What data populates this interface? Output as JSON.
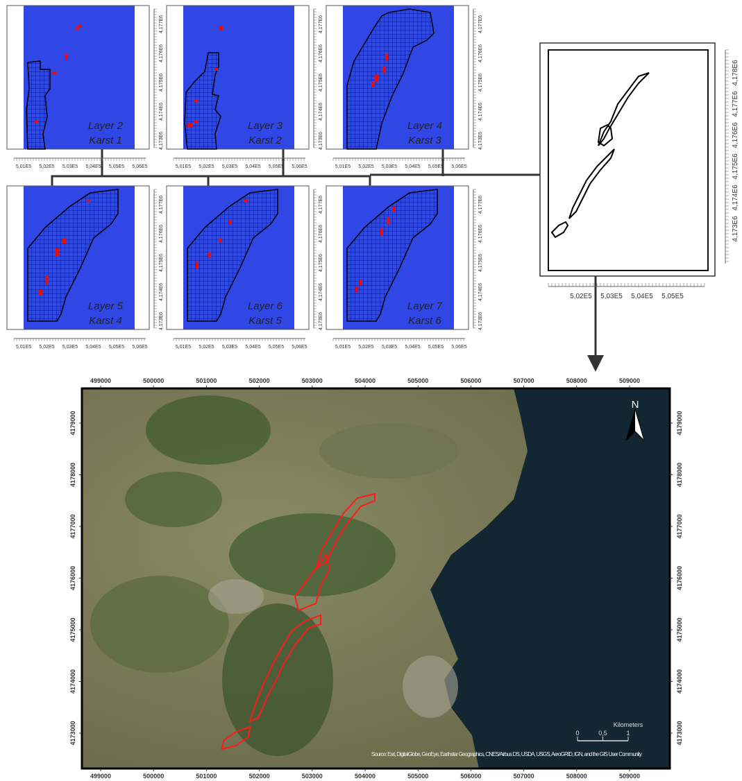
{
  "panels": [
    {
      "layer": "Layer 2",
      "karst": "Karst 1"
    },
    {
      "layer": "Layer 3",
      "karst": "Karst 2"
    },
    {
      "layer": "Layer 4",
      "karst": "Karst 3"
    },
    {
      "layer": "Layer 5",
      "karst": "Karst 4"
    },
    {
      "layer": "Layer 6",
      "karst": "Karst 5"
    },
    {
      "layer": "Layer 7",
      "karst": "Karst 6"
    }
  ],
  "panel_axes": {
    "x_ticks": [
      "5,01E5",
      "5,02E5",
      "5,03E5",
      "5,04E5",
      "5,05E5",
      "5,06E5"
    ],
    "y_ticks": [
      "4,173E6",
      "4,174E6",
      "4,175E6",
      "4,176E6",
      "4,177E6"
    ]
  },
  "overview": {
    "x_ticks": [
      "5,02E5",
      "5,03E5",
      "5,04E5",
      "5,05E5"
    ],
    "y_ticks": [
      "4,173E6",
      "4,174E6",
      "4,175E6",
      "4,176E6",
      "4,177E6",
      "4,178E6"
    ]
  },
  "map": {
    "x_ticks": [
      "499000",
      "500000",
      "501000",
      "502000",
      "503000",
      "504000",
      "505000",
      "506000",
      "507000",
      "508000",
      "509000"
    ],
    "y_ticks": [
      "4173000",
      "4174000",
      "4175000",
      "4176000",
      "4177000",
      "4178000",
      "4179000"
    ],
    "north": "N",
    "scale_title": "Kilometers",
    "scale_labels": [
      "0",
      "0,5",
      "1"
    ],
    "attribution": "Source: Esri, DigitalGlobe, GeoEye, Earthstar Geographics, CNES/Airbus DS, USDA, USGS, AeroGRID, IGN, and the GIS User Community"
  }
}
